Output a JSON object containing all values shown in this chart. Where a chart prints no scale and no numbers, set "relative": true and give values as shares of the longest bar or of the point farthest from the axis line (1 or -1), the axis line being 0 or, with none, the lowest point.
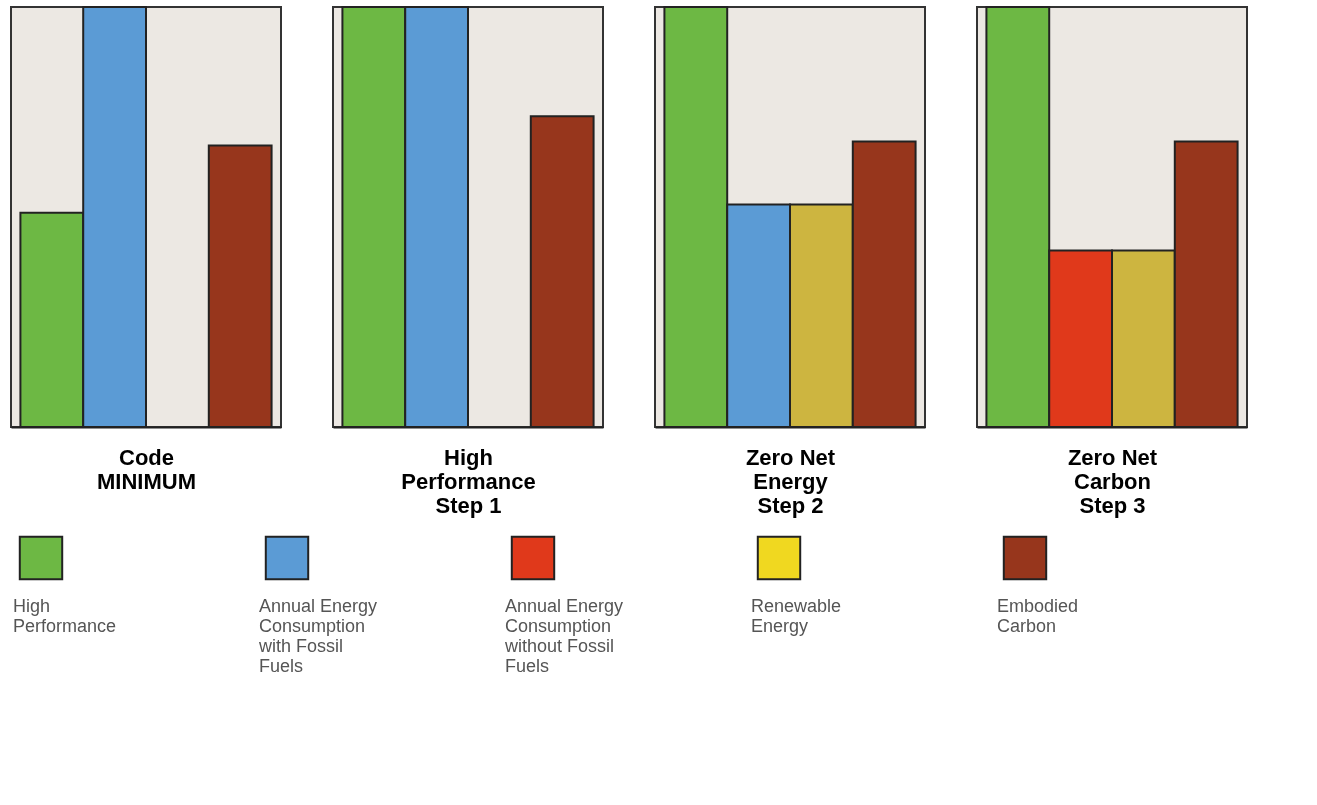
{
  "chart_data": [
    {
      "type": "bar",
      "relative": true,
      "xlabel": "Code MINIMUM",
      "categories": [
        null,
        null,
        null
      ],
      "grid": false,
      "tick_labels": false,
      "values": [
        0.51,
        1.0,
        0.67
      ],
      "colors": [
        "#6db844",
        "#5b9bd5",
        "#97361c"
      ]
    },
    {
      "type": "bar",
      "relative": true,
      "xlabel": "High Performance Step 1",
      "categories": [
        null,
        null,
        null
      ],
      "grid": false,
      "tick_labels": false,
      "values": [
        1.0,
        1.0,
        0.74
      ],
      "colors": [
        "#6db844",
        "#5b9bd5",
        "#97361c"
      ]
    },
    {
      "type": "bar",
      "relative": true,
      "xlabel": "Zero Net Energy Step 2",
      "categories": [
        null,
        null,
        null,
        null
      ],
      "grid": false,
      "tick_labels": false,
      "values": [
        1.0,
        0.53,
        0.53,
        0.68
      ],
      "colors": [
        "#6db844",
        "#5b9bd5",
        "#cdb540",
        "#97361c"
      ]
    },
    {
      "type": "bar",
      "relative": true,
      "xlabel": "Zero Net Carbon Step 3",
      "categories": [
        null,
        null,
        null,
        null
      ],
      "grid": false,
      "tick_labels": false,
      "values": [
        1.0,
        0.42,
        0.42,
        0.68
      ],
      "colors": [
        "#6db844",
        "#e0391b",
        "#cdb540",
        "#97361c"
      ]
    },
    {
      "type": "other",
      "categories": [
        "High Performance",
        "Annual Energy Consumption with Fossil Fuels",
        "Annual Energy Consumption without Fossil Fuels",
        "Renewable Energy",
        "Embodied Carbon"
      ],
      "colors": [
        "#6db844",
        "#5b9bd5",
        "#e0391b",
        "#f0d820",
        "#97361c"
      ]
    }
  ]
}
